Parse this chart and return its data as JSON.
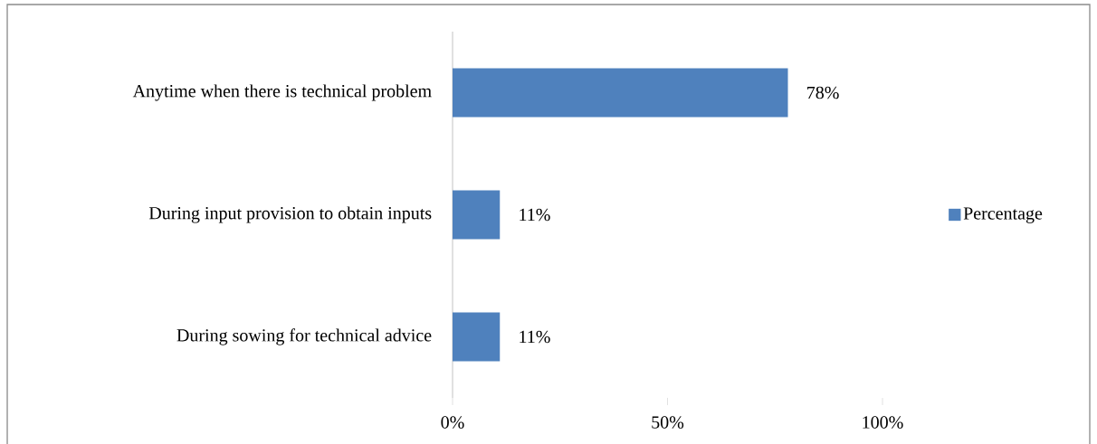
{
  "chart_data": {
    "type": "bar",
    "orientation": "horizontal",
    "categories": [
      "Anytime when there is technical problem",
      "During input provision to obtain inputs",
      "During sowing for technical advice"
    ],
    "series": [
      {
        "name": "Percentage",
        "color": "#4f81bd",
        "values": [
          78,
          11,
          11
        ],
        "value_labels": [
          "78%",
          "11%",
          "11%"
        ]
      }
    ],
    "xlim": [
      0,
      100
    ],
    "xticks": [
      {
        "value": 0,
        "label": "0%"
      },
      {
        "value": 50,
        "label": "50%"
      },
      {
        "value": 100,
        "label": "100%"
      }
    ],
    "legend": "right",
    "grid": false
  }
}
